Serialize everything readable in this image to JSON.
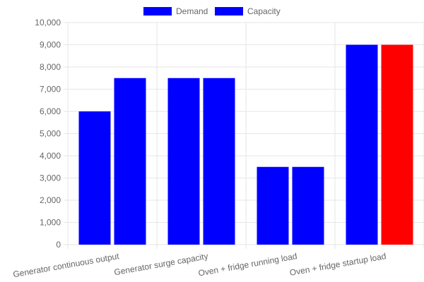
{
  "colors": {
    "demand": "#0000FF",
    "capacity": "#0000FF",
    "highlight": "#FF0000",
    "grid": "#E6E6E6",
    "text": "#666666"
  },
  "chart_data": {
    "type": "bar",
    "legend_position": "top",
    "grid": true,
    "categories": [
      "Generator continuous output",
      "Generator surge capacity",
      "Oven + fridge running load",
      "Oven + fridge startup load"
    ],
    "series": [
      {
        "name": "Demand",
        "values": [
          6000,
          7500,
          3500,
          9000
        ],
        "colors": [
          "#0000FF",
          "#0000FF",
          "#0000FF",
          "#0000FF"
        ]
      },
      {
        "name": "Capacity",
        "values": [
          7500,
          7500,
          3500,
          9000
        ],
        "colors": [
          "#0000FF",
          "#0000FF",
          "#0000FF",
          "#FF0000"
        ]
      }
    ],
    "ylim": [
      0,
      10000
    ],
    "yticks": [
      "0",
      "1,000",
      "2,000",
      "3,000",
      "4,000",
      "5,000",
      "6,000",
      "7,000",
      "8,000",
      "9,000",
      "10,000"
    ],
    "ytick_values": [
      0,
      1000,
      2000,
      3000,
      4000,
      5000,
      6000,
      7000,
      8000,
      9000,
      10000
    ],
    "title": "",
    "xlabel": "",
    "ylabel": ""
  }
}
